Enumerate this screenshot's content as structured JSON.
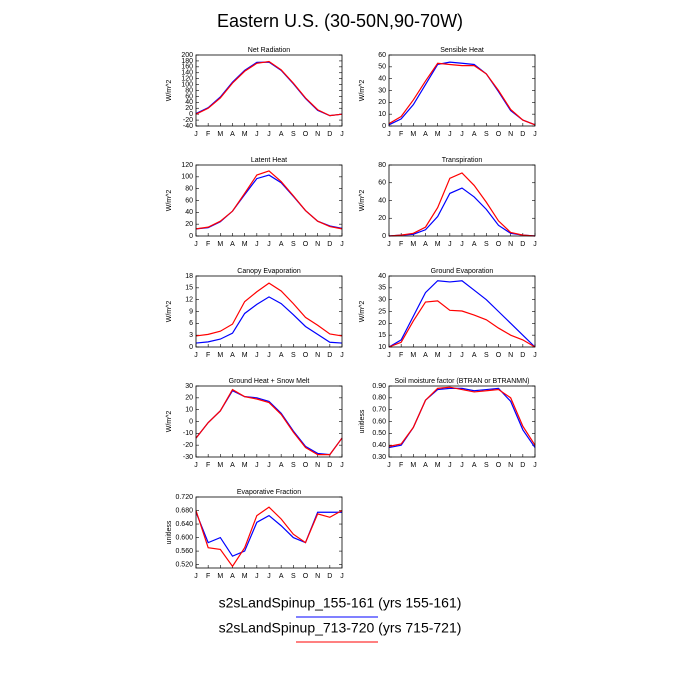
{
  "title": "Eastern U.S. (30-50N,90-70W)",
  "legend": [
    {
      "name": "s2sLandSpinup_155-161 (yrs 155-161)",
      "color": "#0000ff"
    },
    {
      "name": "s2sLandSpinup_713-720 (yrs 715-721)",
      "color": "#ff0000"
    }
  ],
  "chart_data": [
    {
      "type": "line",
      "title": "Net Radiation",
      "y_label": "W/m^2",
      "categories": [
        "J",
        "F",
        "M",
        "A",
        "M",
        "J",
        "J",
        "A",
        "S",
        "O",
        "N",
        "D",
        "J"
      ],
      "ylim": [
        -40,
        200
      ],
      "yticks": [
        -40,
        -20,
        0,
        20,
        40,
        60,
        80,
        100,
        120,
        140,
        160,
        180,
        200
      ],
      "series": [
        {
          "values": [
            2,
            22,
            58,
            108,
            148,
            175,
            176,
            148,
            103,
            53,
            13,
            -5,
            0
          ]
        },
        {
          "values": [
            0,
            20,
            55,
            105,
            145,
            172,
            178,
            150,
            105,
            55,
            15,
            -5,
            0
          ]
        }
      ]
    },
    {
      "type": "line",
      "title": "Sensible Heat",
      "y_label": "W/m^2",
      "categories": [
        "J",
        "F",
        "M",
        "A",
        "M",
        "J",
        "J",
        "A",
        "S",
        "O",
        "N",
        "D",
        "J"
      ],
      "ylim": [
        0,
        60
      ],
      "yticks": [
        0,
        10,
        20,
        30,
        40,
        50,
        60
      ],
      "series": [
        {
          "values": [
            1,
            6,
            18,
            35,
            52,
            54,
            53,
            52,
            44,
            29,
            13,
            5,
            1
          ]
        },
        {
          "values": [
            2,
            8,
            22,
            38,
            53,
            52,
            51,
            51,
            44,
            30,
            14,
            5,
            1
          ]
        }
      ]
    },
    {
      "type": "line",
      "title": "Latent Heat",
      "y_label": "W/m^2",
      "categories": [
        "J",
        "F",
        "M",
        "A",
        "M",
        "J",
        "J",
        "A",
        "S",
        "O",
        "N",
        "D",
        "J"
      ],
      "ylim": [
        0,
        120
      ],
      "yticks": [
        0,
        20,
        40,
        60,
        80,
        100,
        120
      ],
      "series": [
        {
          "values": [
            12,
            14,
            24,
            42,
            70,
            97,
            103,
            90,
            67,
            43,
            25,
            17,
            13
          ]
        },
        {
          "values": [
            12,
            15,
            25,
            42,
            72,
            103,
            110,
            92,
            68,
            43,
            25,
            16,
            12
          ]
        }
      ]
    },
    {
      "type": "line",
      "title": "Transpiration",
      "y_label": "W/m^2",
      "categories": [
        "J",
        "F",
        "M",
        "A",
        "M",
        "J",
        "J",
        "A",
        "S",
        "O",
        "N",
        "D",
        "J"
      ],
      "ylim": [
        0,
        80
      ],
      "yticks": [
        0,
        20,
        40,
        60,
        80
      ],
      "series": [
        {
          "values": [
            0,
            1,
            2,
            7,
            22,
            48,
            54,
            44,
            30,
            12,
            3,
            1,
            0
          ]
        },
        {
          "values": [
            0,
            1,
            3,
            10,
            32,
            65,
            71,
            57,
            38,
            17,
            4,
            1,
            0
          ]
        }
      ]
    },
    {
      "type": "line",
      "title": "Canopy Evaporation",
      "y_label": "W/m^2",
      "categories": [
        "J",
        "F",
        "M",
        "A",
        "M",
        "J",
        "J",
        "A",
        "S",
        "O",
        "N",
        "D",
        "J"
      ],
      "ylim": [
        0,
        18
      ],
      "yticks": [
        0,
        3,
        6,
        9,
        12,
        15,
        18
      ],
      "series": [
        {
          "values": [
            1,
            1.3,
            2,
            3.5,
            8.5,
            10.8,
            12.7,
            11,
            8.2,
            5.2,
            3.2,
            1.2,
            1
          ]
        },
        {
          "values": [
            2.8,
            3.2,
            4,
            5.8,
            11.5,
            14,
            16.2,
            14.2,
            11,
            7.5,
            5.5,
            3.3,
            2.8
          ]
        }
      ]
    },
    {
      "type": "line",
      "title": "Ground Evaporation",
      "y_label": "W/m^2",
      "categories": [
        "J",
        "F",
        "M",
        "A",
        "M",
        "J",
        "J",
        "A",
        "S",
        "O",
        "N",
        "D",
        "J"
      ],
      "ylim": [
        10,
        40
      ],
      "yticks": [
        10,
        15,
        20,
        25,
        30,
        35,
        40
      ],
      "series": [
        {
          "values": [
            10,
            13,
            23,
            33,
            38,
            37.5,
            38,
            34,
            30,
            25,
            20,
            15,
            10
          ]
        },
        {
          "values": [
            10,
            12,
            21,
            29,
            29.5,
            25.5,
            25.2,
            23.5,
            21.5,
            18,
            15,
            13,
            10
          ]
        }
      ]
    },
    {
      "type": "line",
      "title": "Ground Heat + Snow Melt",
      "y_label": "W/m^2",
      "categories": [
        "J",
        "F",
        "M",
        "A",
        "M",
        "J",
        "J",
        "A",
        "S",
        "O",
        "N",
        "D",
        "J"
      ],
      "ylim": [
        -30,
        30
      ],
      "yticks": [
        -30,
        -20,
        -10,
        0,
        10,
        20,
        30
      ],
      "series": [
        {
          "values": [
            -14,
            -1,
            9,
            26,
            21,
            20,
            17,
            7,
            -8,
            -21,
            -27,
            -28,
            -14
          ]
        },
        {
          "values": [
            -14,
            -1,
            9,
            27,
            21,
            19,
            16,
            6,
            -9,
            -22,
            -28,
            -28,
            -14
          ]
        }
      ]
    },
    {
      "type": "line",
      "title": "Soil moisture factor (BTRAN or BTRANMN)",
      "y_label": "unitless",
      "categories": [
        "J",
        "F",
        "M",
        "A",
        "M",
        "J",
        "J",
        "A",
        "S",
        "O",
        "N",
        "D",
        "J"
      ],
      "ylim": [
        0.3,
        0.9
      ],
      "yticks": [
        {
          "value": 0.3,
          "label": "0.30"
        },
        {
          "value": 0.4,
          "label": "0.40"
        },
        {
          "value": 0.5,
          "label": "0.50"
        },
        {
          "value": 0.6,
          "label": "0.60"
        },
        {
          "value": 0.7,
          "label": "0.70"
        },
        {
          "value": 0.8,
          "label": "0.80"
        },
        {
          "value": 0.9,
          "label": "0.90"
        }
      ],
      "series": [
        {
          "values": [
            0.38,
            0.4,
            0.55,
            0.78,
            0.87,
            0.88,
            0.88,
            0.86,
            0.87,
            0.88,
            0.77,
            0.53,
            0.38
          ]
        },
        {
          "values": [
            0.39,
            0.41,
            0.55,
            0.78,
            0.88,
            0.89,
            0.87,
            0.85,
            0.86,
            0.87,
            0.8,
            0.56,
            0.4
          ]
        }
      ]
    },
    {
      "type": "line",
      "title": "Evaporative Fraction",
      "y_label": "unitless",
      "categories": [
        "J",
        "F",
        "M",
        "A",
        "M",
        "J",
        "J",
        "A",
        "S",
        "O",
        "N",
        "D",
        "J"
      ],
      "ylim": [
        0.51,
        0.72
      ],
      "yticks": [
        {
          "value": 0.52,
          "label": "0.520"
        },
        {
          "value": 0.56,
          "label": "0.560"
        },
        {
          "value": 0.6,
          "label": "0.600"
        },
        {
          "value": 0.64,
          "label": "0.640"
        },
        {
          "value": 0.68,
          "label": "0.680"
        },
        {
          "value": 0.72,
          "label": "0.720"
        }
      ],
      "series": [
        {
          "values": [
            0.675,
            0.585,
            0.6,
            0.545,
            0.56,
            0.645,
            0.665,
            0.635,
            0.6,
            0.585,
            0.675,
            0.675,
            0.675
          ]
        },
        {
          "values": [
            0.68,
            0.57,
            0.565,
            0.515,
            0.57,
            0.665,
            0.69,
            0.655,
            0.61,
            0.585,
            0.67,
            0.66,
            0.68
          ]
        }
      ]
    }
  ]
}
